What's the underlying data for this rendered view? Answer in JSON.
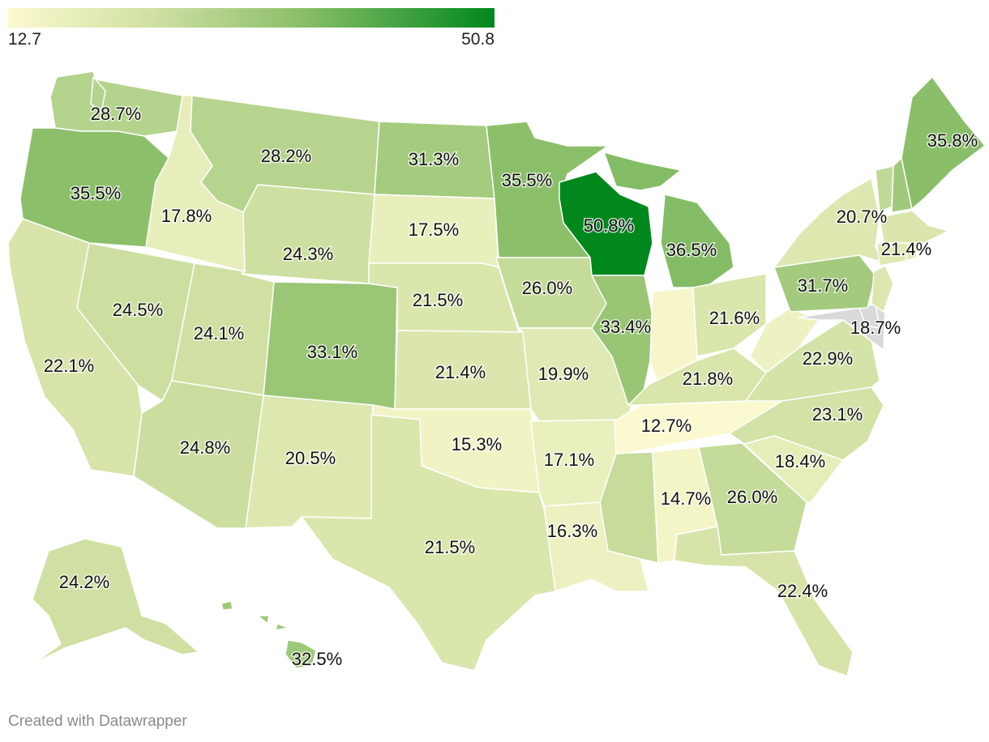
{
  "legend": {
    "min_label": "12.7",
    "max_label": "50.8",
    "min_value": 12.7,
    "max_value": 50.8,
    "color_min": "#fbf9cf",
    "color_max": "#00881d"
  },
  "nodata_color": "#d9d9dc",
  "credit": "Created with Datawrapper",
  "states": [
    {
      "id": "WA",
      "label": "28.7%",
      "value": 28.7
    },
    {
      "id": "OR",
      "label": "35.5%",
      "value": 35.5
    },
    {
      "id": "CA",
      "label": "22.1%",
      "value": 22.1
    },
    {
      "id": "ID",
      "label": "17.8%",
      "value": 17.8
    },
    {
      "id": "NV",
      "label": "24.5%",
      "value": 24.5
    },
    {
      "id": "MT",
      "label": "28.2%",
      "value": 28.2
    },
    {
      "id": "WY",
      "label": "24.3%",
      "value": 24.3
    },
    {
      "id": "UT",
      "label": "24.1%",
      "value": 24.1
    },
    {
      "id": "AZ",
      "label": "24.8%",
      "value": 24.8
    },
    {
      "id": "CO",
      "label": "33.1%",
      "value": 33.1
    },
    {
      "id": "NM",
      "label": "20.5%",
      "value": 20.5
    },
    {
      "id": "ND",
      "label": "31.3%",
      "value": 31.3
    },
    {
      "id": "SD",
      "label": "17.5%",
      "value": 17.5
    },
    {
      "id": "NE",
      "label": "21.5%",
      "value": 21.5
    },
    {
      "id": "KS",
      "label": "21.4%",
      "value": 21.4
    },
    {
      "id": "OK",
      "label": "15.3%",
      "value": 15.3
    },
    {
      "id": "TX",
      "label": "21.5%",
      "value": 21.5
    },
    {
      "id": "MN",
      "label": "35.5%",
      "value": 35.5
    },
    {
      "id": "IA",
      "label": "26.0%",
      "value": 26.0
    },
    {
      "id": "MO",
      "label": "19.9%",
      "value": 19.9
    },
    {
      "id": "AR",
      "label": "17.1%",
      "value": 17.1
    },
    {
      "id": "LA",
      "label": "16.3%",
      "value": 16.3
    },
    {
      "id": "WI",
      "label": "50.8%",
      "value": 50.8
    },
    {
      "id": "IL",
      "label": "33.4%",
      "value": 33.4
    },
    {
      "id": "MI",
      "label": "36.5%",
      "value": 36.5
    },
    {
      "id": "IN",
      "label": "",
      "value": 14.0
    },
    {
      "id": "OH",
      "label": "21.6%",
      "value": 21.6
    },
    {
      "id": "KY",
      "label": "21.8%",
      "value": 21.8
    },
    {
      "id": "TN",
      "label": "12.7%",
      "value": 12.7
    },
    {
      "id": "MS",
      "label": "",
      "value": 25.5
    },
    {
      "id": "AL",
      "label": "14.7%",
      "value": 14.7
    },
    {
      "id": "GA",
      "label": "26.0%",
      "value": 26.0
    },
    {
      "id": "FL",
      "label": "22.4%",
      "value": 22.4
    },
    {
      "id": "SC",
      "label": "18.4%",
      "value": 18.4
    },
    {
      "id": "NC",
      "label": "23.1%",
      "value": 23.1
    },
    {
      "id": "VA",
      "label": "22.9%",
      "value": 22.9
    },
    {
      "id": "WV",
      "label": "",
      "value": 16.0
    },
    {
      "id": "MD",
      "label": "18.7%",
      "value": null
    },
    {
      "id": "DE",
      "label": "",
      "value": null
    },
    {
      "id": "PA",
      "label": "31.7%",
      "value": 31.7
    },
    {
      "id": "NJ",
      "label": "",
      "value": 21.0
    },
    {
      "id": "NY",
      "label": "20.7%",
      "value": 20.7
    },
    {
      "id": "VT",
      "label": "",
      "value": 26.5
    },
    {
      "id": "NH",
      "label": "",
      "value": 32.0
    },
    {
      "id": "MA",
      "label": "21.4%",
      "value": 21.4
    },
    {
      "id": "CT",
      "label": "",
      "value": 20.0
    },
    {
      "id": "RI",
      "label": "",
      "value": 20.0
    },
    {
      "id": "ME",
      "label": "35.8%",
      "value": 35.8
    },
    {
      "id": "AK",
      "label": "24.2%",
      "value": 24.2
    },
    {
      "id": "HI",
      "label": "32.5%",
      "value": 32.5
    }
  ]
}
